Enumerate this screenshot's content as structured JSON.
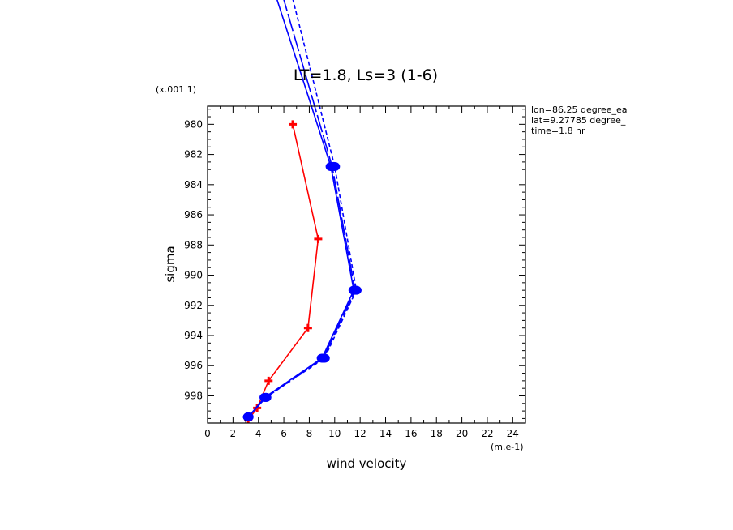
{
  "chart_data": {
    "type": "line",
    "title": "LT=1.8, Ls=3 (1-6)",
    "xlabel": "wind velocity",
    "ylabel": "sigma",
    "x_unit": "(m.e-1)",
    "y_unit": "(x.001 1)",
    "xlim": [
      0,
      25
    ],
    "ylim": [
      999.8,
      978.8
    ],
    "x_ticks": [
      "0",
      "2",
      "4",
      "6",
      "8",
      "10",
      "12",
      "14",
      "16",
      "18",
      "20",
      "22",
      "24"
    ],
    "y_ticks": [
      "980",
      "982",
      "984",
      "986",
      "988",
      "990",
      "992",
      "994",
      "996",
      "998"
    ],
    "info": [
      "lon=86.25 degree_ea",
      "lat=9.27785 degree_",
      "time=1.8 hr"
    ],
    "series": [
      {
        "color": "#ff0000",
        "style": "solid",
        "marker": "plus",
        "x": [
          6.7,
          8.7,
          7.9,
          4.8,
          3.9,
          3.2
        ],
        "y": [
          980.0,
          987.6,
          993.5,
          997.0,
          998.8,
          999.6
        ]
      },
      {
        "color": "#0000ff",
        "style": "solid",
        "marker": "dot",
        "x": [
          4.8,
          9.7,
          11.5,
          9.0,
          4.5,
          3.2
        ],
        "y": [
          970.0,
          982.8,
          991.0,
          995.5,
          998.1,
          999.4
        ]
      },
      {
        "color": "#0000ff",
        "style": "long-dash",
        "marker": "dot",
        "x": [
          5.4,
          9.8,
          11.6,
          9.1,
          4.6,
          3.2
        ],
        "y": [
          970.0,
          982.8,
          991.0,
          995.5,
          998.1,
          999.4
        ]
      },
      {
        "color": "#0000ff",
        "style": "short-dash",
        "marker": "dot",
        "x": [
          6.2,
          10.0,
          11.7,
          9.2,
          4.6,
          3.2
        ],
        "y": [
          970.0,
          982.8,
          991.0,
          995.5,
          998.1,
          999.4
        ]
      }
    ]
  }
}
